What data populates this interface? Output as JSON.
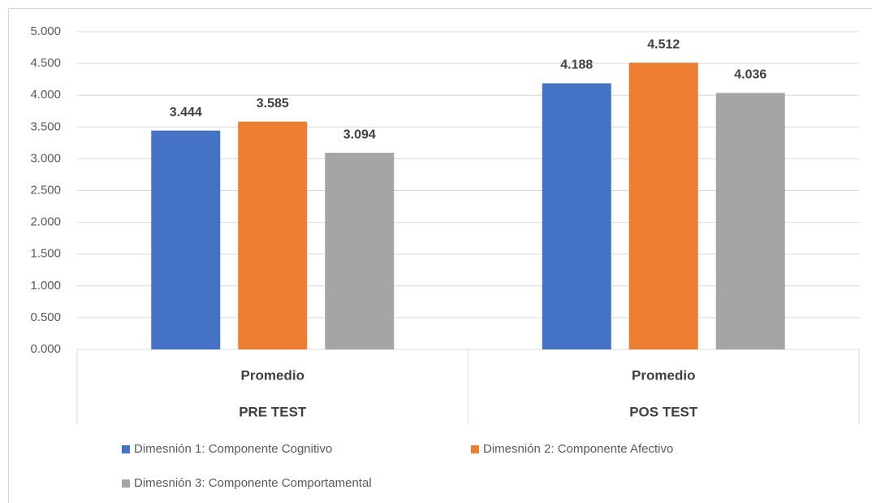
{
  "chart_data": {
    "type": "bar",
    "categories": [
      "Promedio",
      "Promedio"
    ],
    "groups": [
      "PRE TEST",
      "POS TEST"
    ],
    "series": [
      {
        "name": "Dimesnión 1: Componente Cognitivo",
        "color": "#4472c4",
        "values": [
          3.444,
          4.188
        ]
      },
      {
        "name": "Dimesnión 2: Componente Afectivo",
        "color": "#ed7d31",
        "values": [
          3.585,
          4.512
        ]
      },
      {
        "name": "Dimesnión 3: Componente Comportamental",
        "color": "#a5a5a5",
        "values": [
          3.094,
          4.036
        ]
      }
    ],
    "ylim": [
      0,
      5
    ],
    "yticks": [
      {
        "value": 0,
        "label": "0.000"
      },
      {
        "value": 0.5,
        "label": "0.500"
      },
      {
        "value": 1,
        "label": "1.000"
      },
      {
        "value": 1.5,
        "label": "1.500"
      },
      {
        "value": 2,
        "label": "2.000"
      },
      {
        "value": 2.5,
        "label": "2.500"
      },
      {
        "value": 3,
        "label": "3.000"
      },
      {
        "value": 3.5,
        "label": "3.500"
      },
      {
        "value": 4,
        "label": "4.000"
      },
      {
        "value": 4.5,
        "label": "4.500"
      },
      {
        "value": 5,
        "label": "5.000"
      }
    ],
    "grid": true,
    "legend": "bottom"
  }
}
